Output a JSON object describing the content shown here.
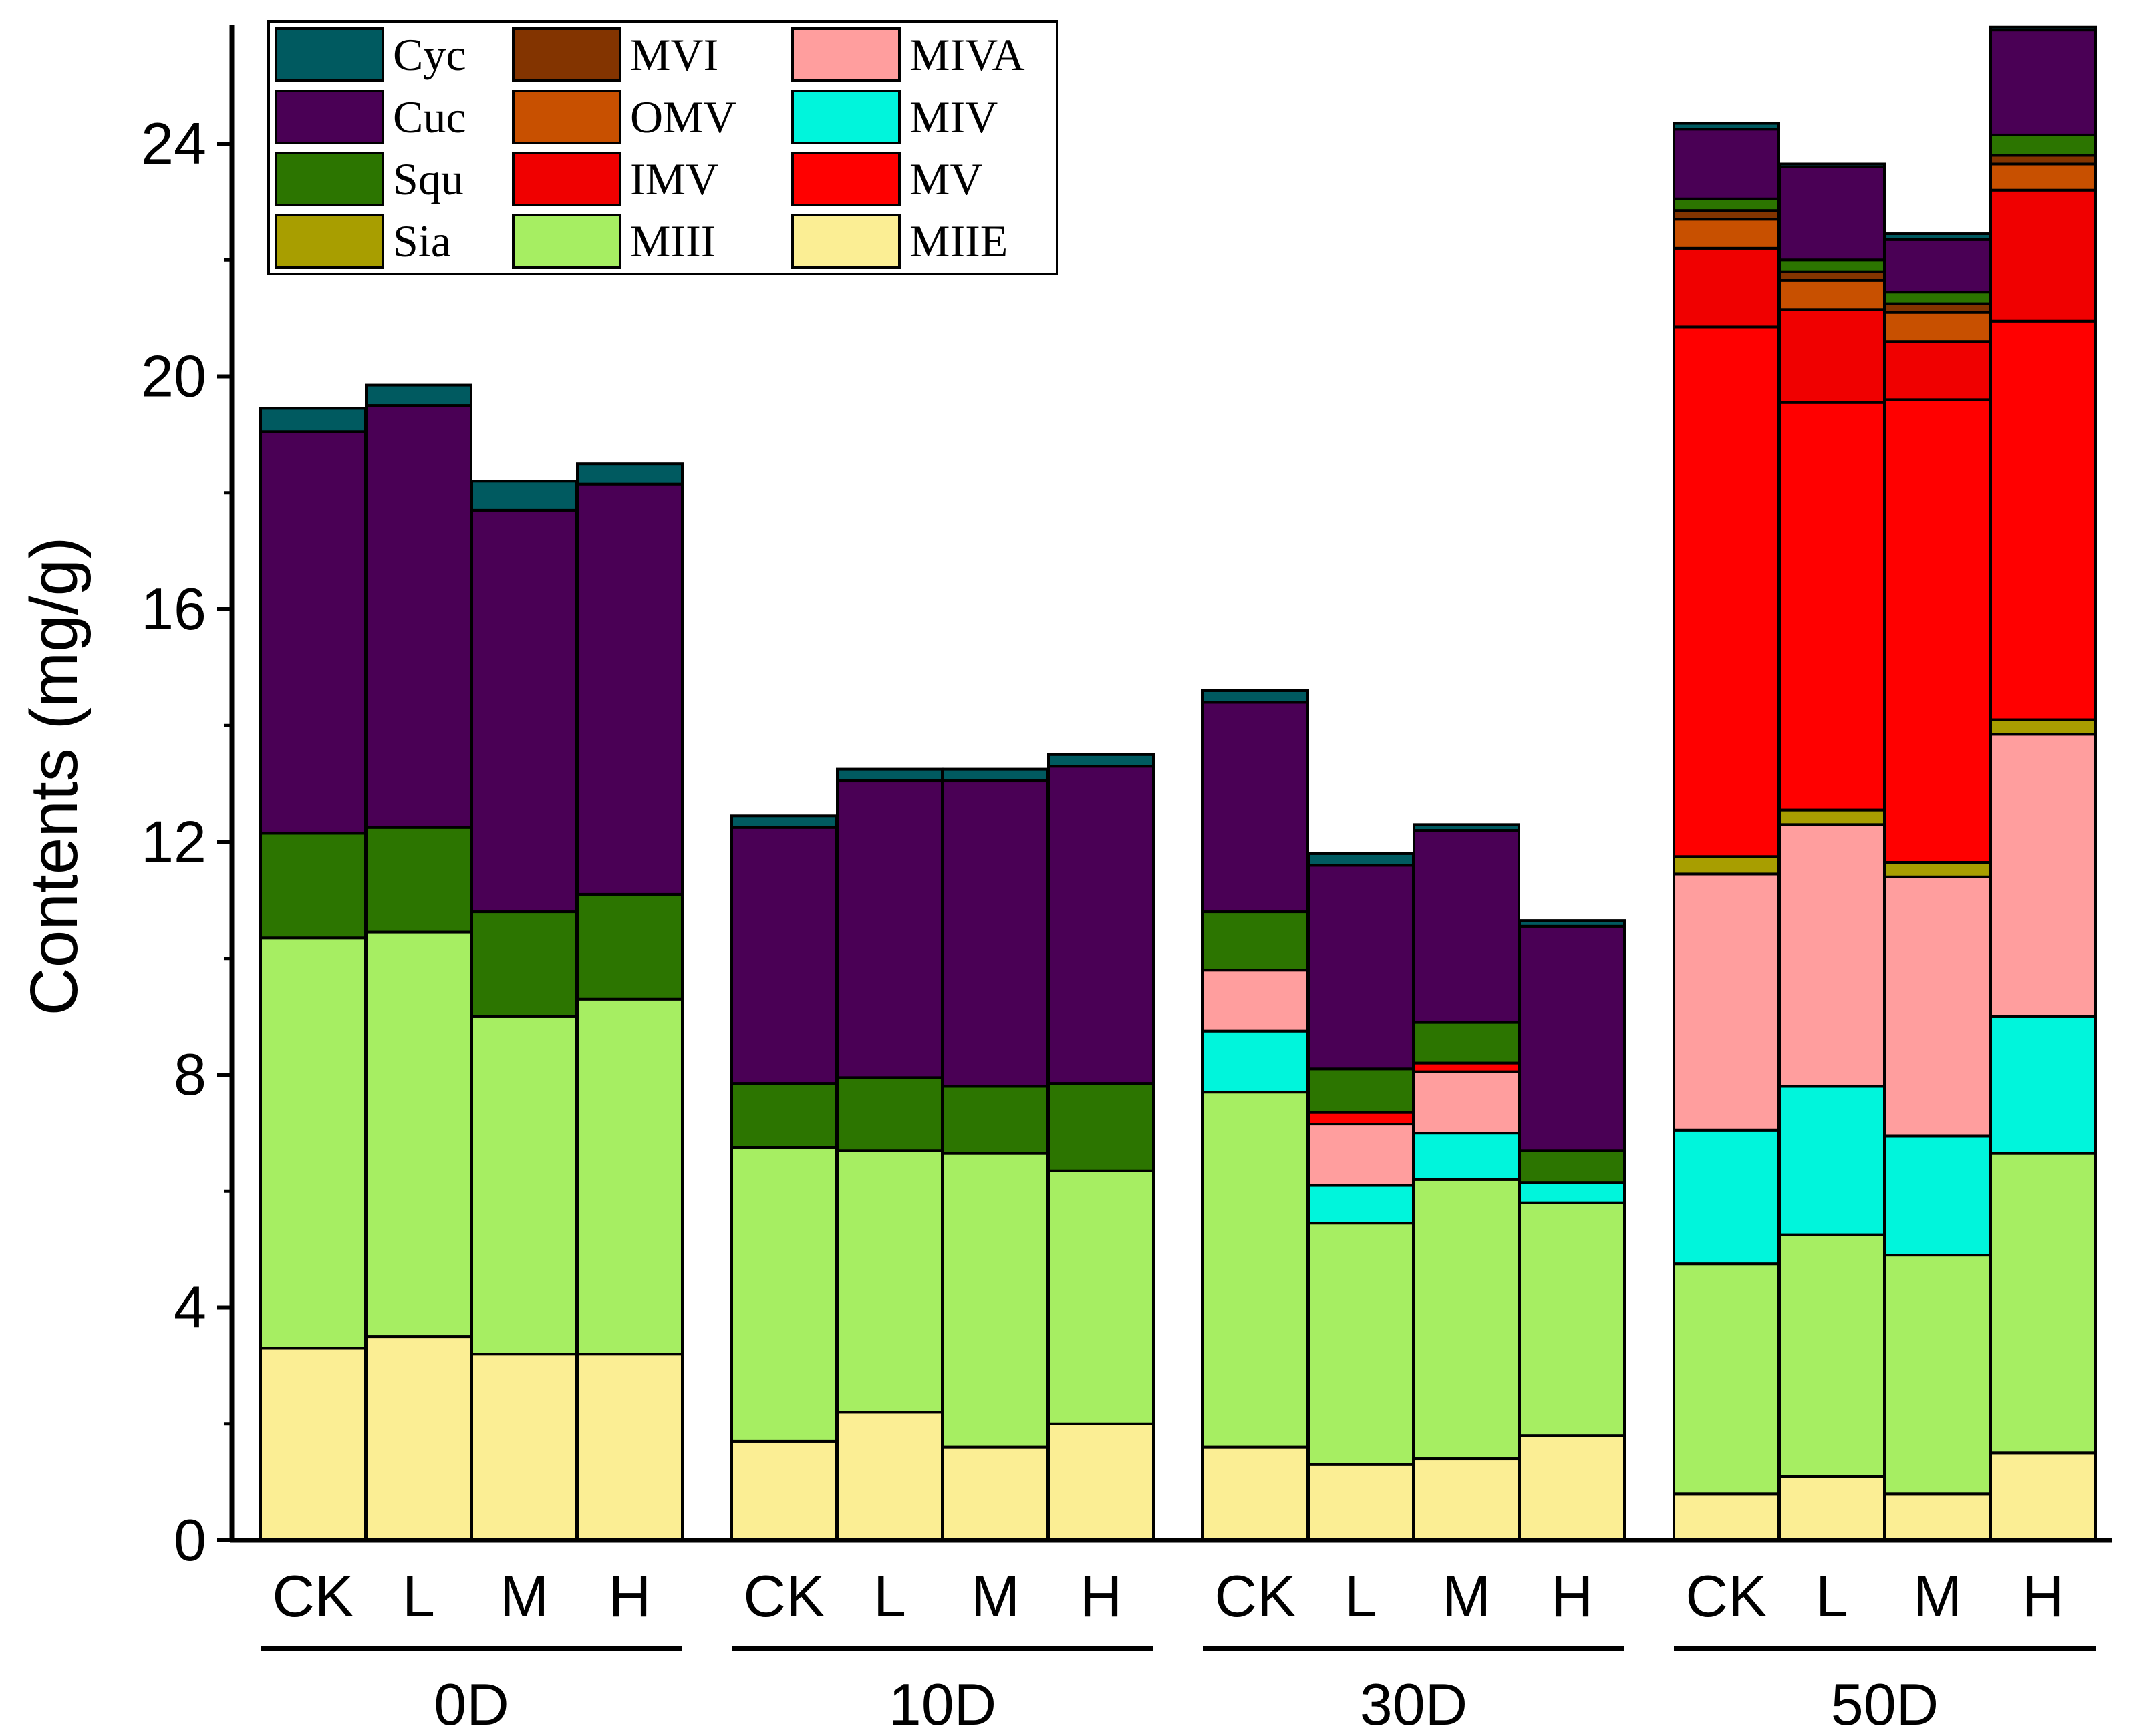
{
  "chart_data": {
    "type": "bar",
    "stacked": true,
    "ylabel": "Contents (mg/g)",
    "ylim": [
      0,
      26
    ],
    "yticks": [
      0,
      4,
      8,
      12,
      16,
      20,
      24
    ],
    "groups": [
      {
        "label": "0D",
        "categories": [
          "CK",
          "L",
          "M",
          "H"
        ]
      },
      {
        "label": "10D",
        "categories": [
          "CK",
          "L",
          "M",
          "H"
        ]
      },
      {
        "label": "30D",
        "categories": [
          "CK",
          "L",
          "M",
          "H"
        ]
      },
      {
        "label": "50D",
        "categories": [
          "CK",
          "L",
          "M",
          "H"
        ]
      }
    ],
    "legend_location": "top-left",
    "series": [
      {
        "name": "MIIE",
        "color": "#FBEE94",
        "values": [
          3.3,
          3.5,
          3.2,
          3.2,
          1.7,
          2.2,
          1.6,
          2.0,
          1.6,
          1.3,
          1.4,
          1.8,
          0.8,
          1.1,
          0.8,
          1.5
        ]
      },
      {
        "name": "MIII",
        "color": "#A6EE62",
        "values": [
          7.05,
          6.95,
          5.8,
          6.1,
          5.05,
          4.5,
          5.05,
          4.35,
          6.1,
          4.15,
          4.8,
          4.0,
          3.95,
          4.15,
          4.1,
          5.15
        ]
      },
      {
        "name": "Sia",
        "color": "#A89E00",
        "values": [
          0,
          0,
          0,
          0,
          0,
          0,
          0,
          0,
          0,
          0,
          0,
          0,
          0,
          0,
          0,
          0
        ]
      },
      {
        "name": "MIV",
        "color": "#00F5DC",
        "values": [
          0,
          0,
          0,
          0,
          0,
          0,
          0,
          0,
          1.05,
          0.65,
          0.8,
          0.35,
          2.3,
          2.55,
          2.05,
          2.35
        ]
      },
      {
        "name": "MIVA",
        "color": "#FF9E9E",
        "values": [
          0,
          0,
          0,
          0,
          0,
          0,
          0,
          0,
          1.05,
          1.05,
          1.05,
          0,
          4.4,
          4.5,
          4.45,
          4.85
        ]
      },
      {
        "name": "MV",
        "color": "#FF0000",
        "values": [
          0,
          0,
          0,
          0,
          0,
          0,
          0,
          0,
          0,
          0,
          0,
          0,
          0,
          0,
          0,
          0
        ]
      },
      {
        "name": "Sia",
        "color": "#A89E00",
        "values": [
          0,
          0,
          0,
          0,
          0,
          0,
          0,
          0,
          0,
          0,
          0,
          0,
          0.3,
          0.25,
          0.25,
          0.25
        ]
      },
      {
        "name": "MV",
        "color": "#FF0000",
        "values": [
          0,
          0,
          0,
          0,
          0,
          0,
          0,
          0,
          0,
          0.2,
          0.15,
          0,
          9.1,
          7.0,
          7.95,
          6.85
        ]
      },
      {
        "name": "IMV",
        "color": "#F00000",
        "values": [
          0,
          0,
          0,
          0,
          0,
          0,
          0,
          0,
          0,
          0,
          0,
          0,
          1.35,
          1.6,
          1.0,
          2.25
        ]
      },
      {
        "name": "OMV",
        "color": "#C85000",
        "values": [
          0,
          0,
          0,
          0,
          0,
          0,
          0,
          0,
          0,
          0,
          0,
          0,
          0.5,
          0.5,
          0.5,
          0.45
        ]
      },
      {
        "name": "MVI",
        "color": "#833400",
        "values": [
          0,
          0,
          0,
          0,
          0,
          0,
          0,
          0,
          0,
          0,
          0,
          0,
          0.15,
          0.15,
          0.15,
          0.15
        ]
      },
      {
        "name": "Squ",
        "color": "#2C7500",
        "values": [
          1.8,
          1.8,
          1.8,
          1.8,
          1.1,
          1.25,
          1.15,
          1.5,
          1.0,
          0.75,
          0.7,
          0.55,
          0.2,
          0.2,
          0.2,
          0.35
        ]
      },
      {
        "name": "Cuc",
        "color": "#4A0055",
        "values": [
          6.9,
          7.25,
          6.9,
          7.05,
          4.4,
          5.1,
          5.25,
          5.45,
          3.6,
          3.5,
          3.3,
          3.85,
          1.2,
          1.6,
          0.9,
          1.8
        ]
      },
      {
        "name": "Cyc",
        "color": "#005A60",
        "values": [
          0.4,
          0.35,
          0.5,
          0.35,
          0.2,
          0.2,
          0.2,
          0.2,
          0.2,
          0.2,
          0.1,
          0.1,
          0.1,
          0.05,
          0.1,
          0.05
        ]
      }
    ],
    "legend": [
      {
        "name": "Cyc",
        "color": "#005A60"
      },
      {
        "name": "Cuc",
        "color": "#4A0055"
      },
      {
        "name": "Squ",
        "color": "#2C7500"
      },
      {
        "name": "Sia",
        "color": "#A89E00"
      },
      {
        "name": "MVI",
        "color": "#833400"
      },
      {
        "name": "OMV",
        "color": "#C85000"
      },
      {
        "name": "IMV",
        "color": "#F00000"
      },
      {
        "name": "MIII",
        "color": "#A6EE62"
      },
      {
        "name": "MIVA",
        "color": "#FF9E9E"
      },
      {
        "name": "MIV",
        "color": "#00F5DC"
      },
      {
        "name": "MV",
        "color": "#FF0000"
      },
      {
        "name": "MIIE",
        "color": "#FBEE94"
      }
    ]
  }
}
